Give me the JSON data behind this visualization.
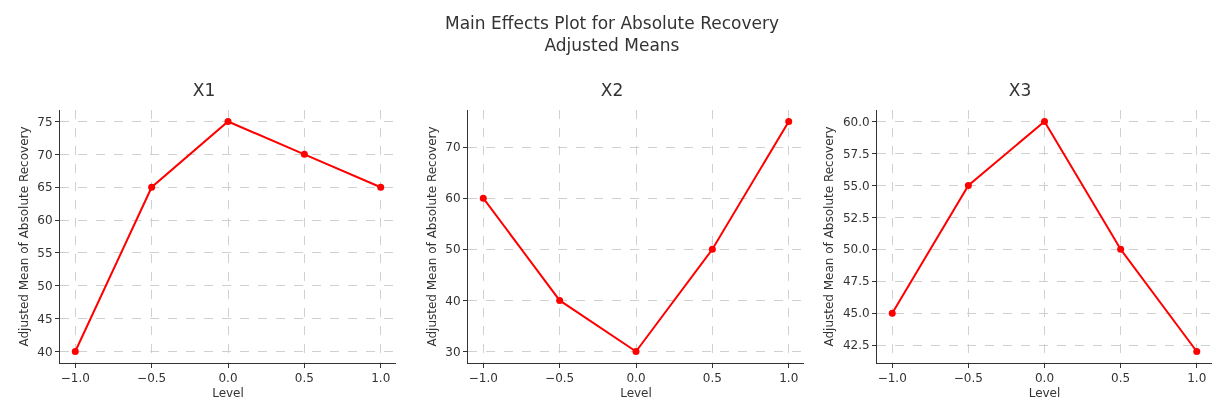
{
  "chart_data": [
    {
      "type": "line",
      "title": "X1",
      "xlabel": "Level",
      "ylabel": "Adjusted Mean of Absolute Recovery",
      "annotations": [
        "Main Effects Plot for Absolute Recovery",
        "Adjusted Means"
      ],
      "x": [
        -1,
        -0.5,
        0,
        0.5,
        1
      ],
      "series": [
        {
          "color": "#ff0000",
          "values": [
            40,
            65,
            75,
            70,
            65
          ]
        }
      ],
      "xlim": [
        -1.1,
        1.1
      ],
      "xticks": [
        {
          "value": -1,
          "label": "−1.0"
        },
        {
          "value": -0.5,
          "label": "−0.5"
        },
        {
          "value": 0,
          "label": "0.0"
        },
        {
          "value": 0.5,
          "label": "0.5"
        },
        {
          "value": 1,
          "label": "1.0"
        }
      ],
      "ylim": [
        38.25,
        76.75
      ],
      "yticks": [
        40,
        45,
        50,
        55,
        60,
        65,
        70,
        75
      ],
      "grid": true,
      "marker": "circle",
      "line_style": "solid"
    },
    {
      "type": "line",
      "title": "X2",
      "xlabel": "Level",
      "ylabel": "Adjusted Mean of Absolute Recovery",
      "x": [
        -1,
        -0.5,
        0,
        0.5,
        1
      ],
      "series": [
        {
          "color": "#ff0000",
          "values": [
            60,
            40,
            30,
            50,
            75
          ]
        }
      ],
      "xlim": [
        -1.1,
        1.1
      ],
      "xticks": [
        {
          "value": -1,
          "label": "−1.0"
        },
        {
          "value": -0.5,
          "label": "−0.5"
        },
        {
          "value": 0,
          "label": "0.0"
        },
        {
          "value": 0.5,
          "label": "0.5"
        },
        {
          "value": 1,
          "label": "1.0"
        }
      ],
      "ylim": [
        27.75,
        77.25
      ],
      "yticks": [
        30,
        40,
        50,
        60,
        70
      ],
      "grid": true,
      "marker": "circle",
      "line_style": "solid"
    },
    {
      "type": "line",
      "title": "X3",
      "xlabel": "Level",
      "ylabel": "Adjusted Mean of Absolute Recovery",
      "x": [
        -1,
        -0.5,
        0,
        0.5,
        1
      ],
      "series": [
        {
          "color": "#ff0000",
          "values": [
            45,
            55,
            60,
            50,
            42
          ]
        }
      ],
      "xlim": [
        -1.1,
        1.1
      ],
      "xticks": [
        {
          "value": -1,
          "label": "−1.0"
        },
        {
          "value": -0.5,
          "label": "−0.5"
        },
        {
          "value": 0,
          "label": "0.0"
        },
        {
          "value": 0.5,
          "label": "0.5"
        },
        {
          "value": 1,
          "label": "1.0"
        }
      ],
      "ylim": [
        41.1,
        60.9
      ],
      "yticks": [
        42.5,
        {
          "value": 45,
          "label": "45.0"
        },
        47.5,
        {
          "value": 50,
          "label": "50.0"
        },
        52.5,
        {
          "value": 55,
          "label": "55.0"
        },
        57.5,
        {
          "value": 60,
          "label": "60.0"
        }
      ],
      "grid": true,
      "marker": "circle",
      "line_style": "solid"
    }
  ]
}
